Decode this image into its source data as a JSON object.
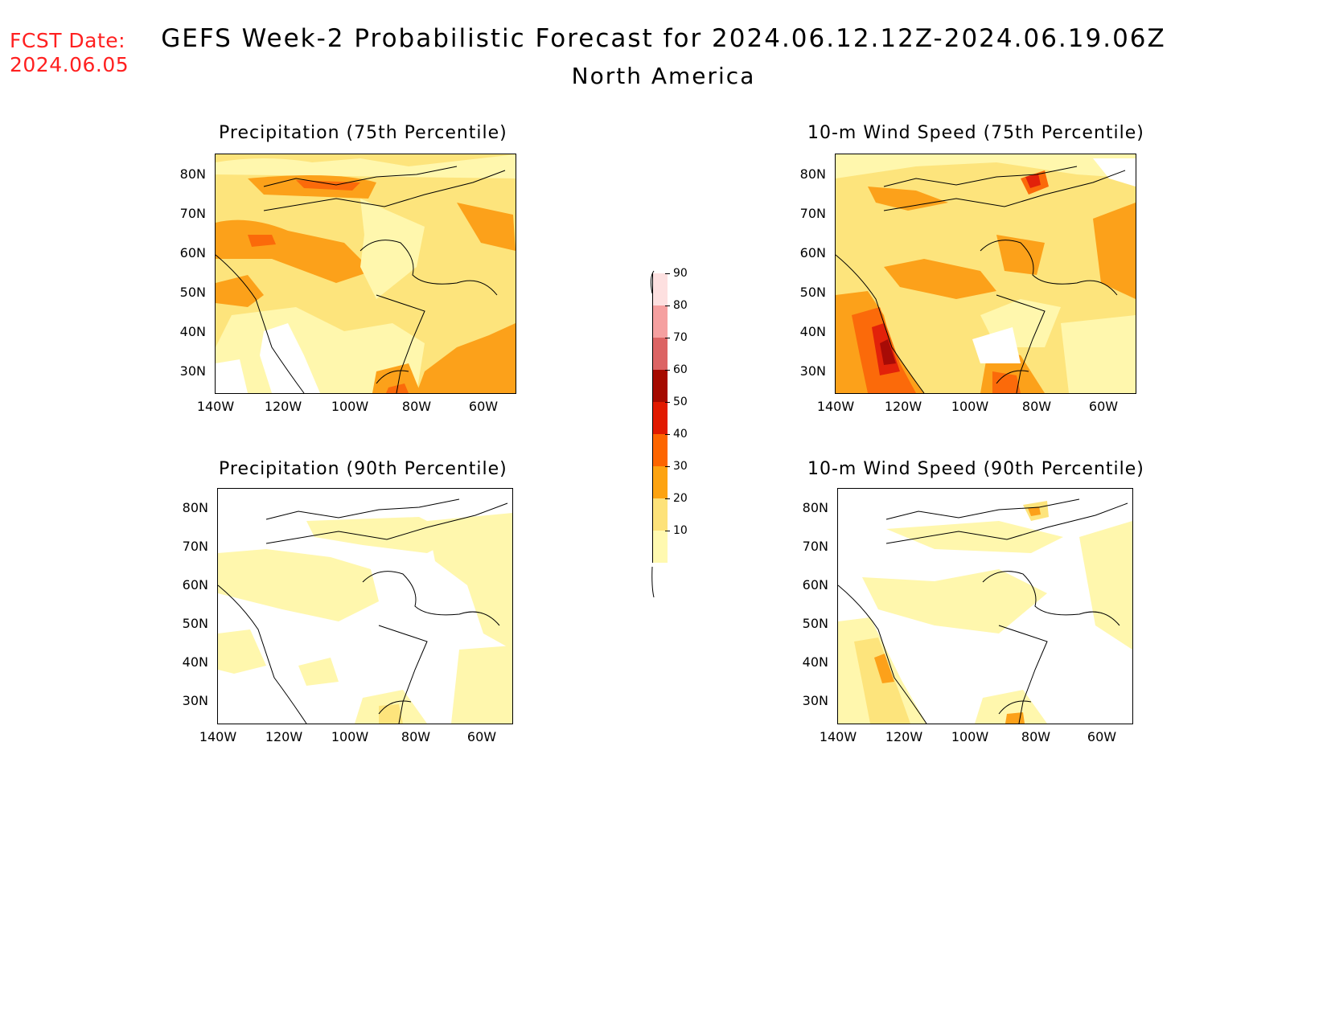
{
  "header": {
    "fcst_label": "FCST Date:",
    "fcst_date": "2024.06.05",
    "title": "GEFS Week-2 Probabilistic Forecast for 2024.06.12.12Z-2024.06.19.06Z",
    "subtitle": "North America"
  },
  "axes": {
    "lat_labels": [
      "80N",
      "70N",
      "60N",
      "50N",
      "40N",
      "30N"
    ],
    "lon_labels": [
      "140W",
      "120W",
      "100W",
      "80W",
      "60W"
    ]
  },
  "panels": [
    {
      "id": "precip75",
      "title": "Precipitation (75th Percentile)"
    },
    {
      "id": "wind75",
      "title": "10-m Wind Speed (75th Percentile)"
    },
    {
      "id": "precip90",
      "title": "Precipitation (90th Percentile)"
    },
    {
      "id": "wind90",
      "title": "10-m Wind Speed (90th Percentile)"
    }
  ],
  "colorbar": {
    "levels": [
      "10",
      "20",
      "30",
      "40",
      "50",
      "60",
      "70",
      "80",
      "90"
    ],
    "colors": [
      "#fff9b0",
      "#fde27a",
      "#fda311",
      "#fd6500",
      "#e11a00",
      "#a50a00",
      "#dc6464",
      "#f5a0a0",
      "#fde0e0"
    ]
  },
  "colors": {
    "fcst": "#ff2020",
    "level_10": "#fff7ad",
    "level_20": "#fde47c",
    "level_30": "#fca11a",
    "level_40": "#fb6a0a",
    "level_50": "#e2220a",
    "level_60": "#a70b06"
  }
}
